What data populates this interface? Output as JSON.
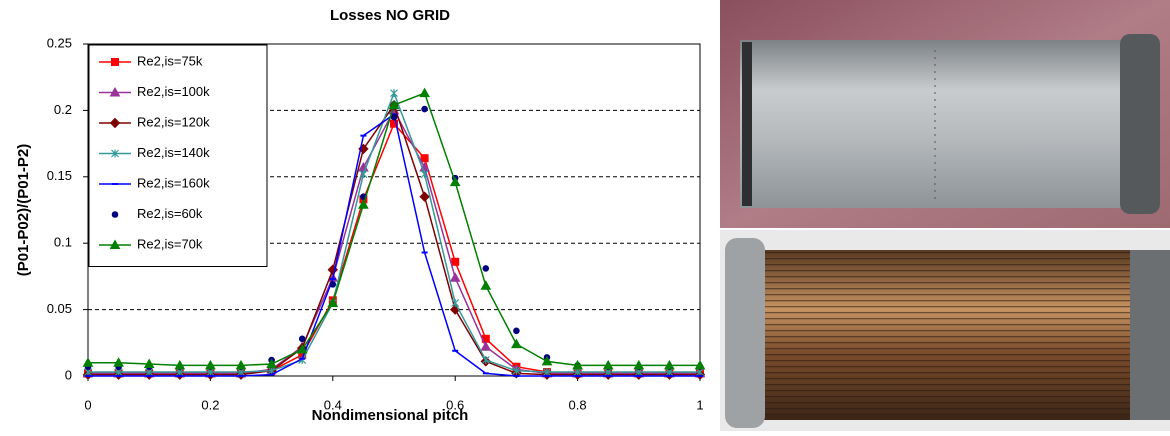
{
  "chart_data": {
    "type": "line",
    "title": "Losses NO GRID",
    "x_label": "Nondimensional pitch",
    "y_label": "(P01-P02)/(P01-P2)",
    "xlim": [
      0,
      1
    ],
    "ylim": [
      0,
      0.25
    ],
    "xticks": [
      0,
      0.2,
      0.4,
      0.6,
      0.8,
      1
    ],
    "yticks": [
      0,
      0.05,
      0.1,
      0.15,
      0.2,
      0.25
    ],
    "grid": true,
    "legend": "upper left",
    "x": [
      0,
      0.05,
      0.1,
      0.15,
      0.2,
      0.25,
      0.3,
      0.35,
      0.4,
      0.45,
      0.5,
      0.55,
      0.6,
      0.65,
      0.7,
      0.75,
      0.8,
      0.85,
      0.9,
      0.95,
      1
    ],
    "series": [
      {
        "name": "Re2,is=75k",
        "color": "#ff0000",
        "marker": "square",
        "line": true,
        "values": [
          0.002,
          0.002,
          0.002,
          0.002,
          0.002,
          0.002,
          0.004,
          0.016,
          0.057,
          0.133,
          0.19,
          0.164,
          0.086,
          0.028,
          0.007,
          0.003,
          0.002,
          0.002,
          0.002,
          0.002,
          0.002
        ]
      },
      {
        "name": "Re2,is=100k",
        "color": "#993399",
        "marker": "triangle",
        "line": true,
        "values": [
          0.002,
          0.002,
          0.002,
          0.002,
          0.002,
          0.002,
          0.005,
          0.022,
          0.074,
          0.157,
          0.2,
          0.157,
          0.074,
          0.022,
          0.005,
          0.002,
          0.002,
          0.002,
          0.002,
          0.002,
          0.002
        ]
      },
      {
        "name": "Re2,is=120k",
        "color": "#800000",
        "marker": "diamond",
        "line": true,
        "values": [
          0.001,
          0.001,
          0.001,
          0.001,
          0.001,
          0.001,
          0.004,
          0.021,
          0.08,
          0.171,
          0.204,
          0.135,
          0.05,
          0.011,
          0.002,
          0.001,
          0.001,
          0.001,
          0.001,
          0.001,
          0.001
        ]
      },
      {
        "name": "Re2,is=140k",
        "color": "#339999",
        "marker": "star",
        "line": true,
        "values": [
          0.003,
          0.003,
          0.003,
          0.003,
          0.003,
          0.003,
          0.004,
          0.012,
          0.055,
          0.152,
          0.213,
          0.152,
          0.055,
          0.012,
          0.004,
          0.003,
          0.003,
          0.003,
          0.003,
          0.003,
          0.003
        ]
      },
      {
        "name": "Re2,is=160k",
        "color": "#0000ff",
        "marker": "dash",
        "line": true,
        "values": [
          0,
          0,
          0,
          0,
          0,
          0,
          0.001,
          0.013,
          0.073,
          0.181,
          0.197,
          0.093,
          0.019,
          0.002,
          0,
          0,
          0,
          0,
          0,
          0,
          0
        ]
      },
      {
        "name": "Re2,is=60k",
        "color": "#000080",
        "marker": "circle",
        "line": false,
        "values": [
          0.007,
          0.007,
          0.007,
          0.007,
          0.007,
          0.007,
          0.012,
          0.028,
          0.069,
          0.135,
          0.195,
          0.201,
          0.149,
          0.081,
          0.034,
          0.014,
          0.008,
          0.007,
          0.007,
          0.007,
          0.007
        ]
      },
      {
        "name": "Re2,is=70k",
        "color": "#008000",
        "marker": "triangle",
        "line": true,
        "values": [
          0.01,
          0.01,
          0.009,
          0.008,
          0.008,
          0.008,
          0.009,
          0.02,
          0.055,
          0.129,
          0.204,
          0.213,
          0.146,
          0.068,
          0.024,
          0.011,
          0.008,
          0.008,
          0.008,
          0.008,
          0.008
        ]
      }
    ]
  }
}
